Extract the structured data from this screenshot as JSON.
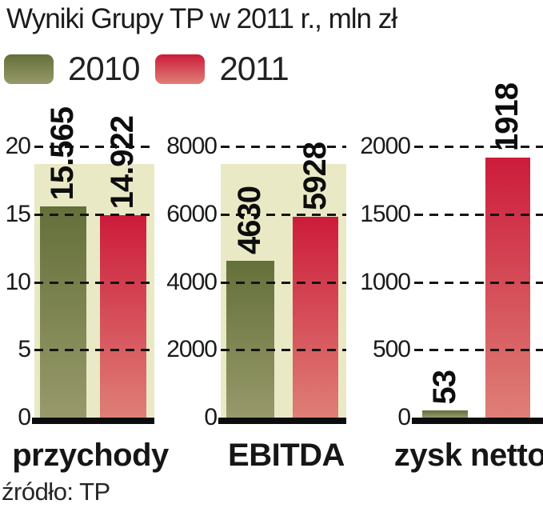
{
  "chart_data": {
    "type": "bar",
    "title": "Wyniki Grupy TP w 2011 r., mln zł",
    "source": "źródło: TP",
    "legend": {
      "s2010": "2010",
      "s2011": "2011"
    },
    "grid": "horizontal-dashed",
    "legend_position": "top-left",
    "panels": [
      {
        "category": "przychody",
        "axis_max": 20,
        "ticks": [
          "20",
          "15",
          "10",
          "5",
          "0"
        ],
        "tick_values": [
          20,
          15,
          10,
          5,
          0
        ],
        "bars": [
          {
            "series": "2010",
            "value": 15.565,
            "label": "15.565"
          },
          {
            "series": "2011",
            "value": 14.922,
            "label": "14.922"
          }
        ]
      },
      {
        "category": "EBITDA",
        "axis_max": 8000,
        "ticks": [
          "8000",
          "6000",
          "4000",
          "2000",
          "0"
        ],
        "tick_values": [
          8000,
          6000,
          4000,
          2000,
          0
        ],
        "bars": [
          {
            "series": "2010",
            "value": 4630,
            "label": "4630"
          },
          {
            "series": "2011",
            "value": 5928,
            "label": "5928"
          }
        ]
      },
      {
        "category": "zysk netto",
        "axis_max": 2000,
        "ticks": [
          "2000",
          "1500",
          "1000",
          "500",
          "0"
        ],
        "tick_values": [
          2000,
          1500,
          1000,
          500,
          0
        ],
        "bars": [
          {
            "series": "2010",
            "value": 53,
            "label": "53"
          },
          {
            "series": "2011",
            "value": 1918,
            "label": "1918"
          }
        ]
      }
    ],
    "colors": {
      "bar2010_top": "#64703a",
      "bar2010_bottom": "#97996a",
      "bar2011_top": "#cc1c3b",
      "bar2011_bottom": "#de7f76",
      "band": "#e9e9c5",
      "axis": "#141414",
      "text": "#1c1c1c"
    }
  }
}
